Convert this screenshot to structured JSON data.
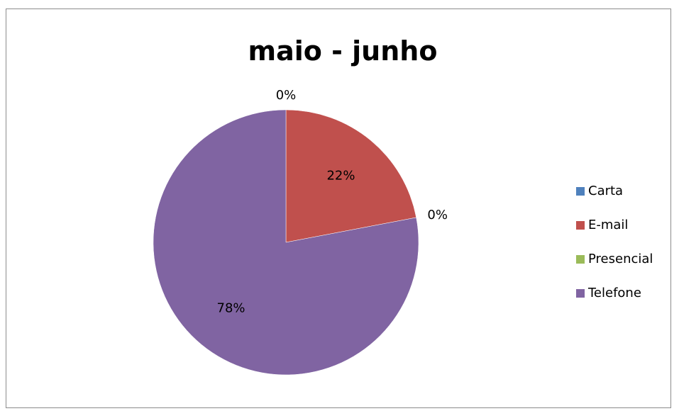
{
  "chart_data": {
    "type": "pie",
    "title": "maio - junho",
    "categories": [
      "Carta",
      "E-mail",
      "Presencial",
      "Telefone"
    ],
    "values": [
      0,
      22,
      0,
      78
    ],
    "labels": [
      "0%",
      "22%",
      "0%",
      "78%"
    ],
    "colors": [
      "#4F81BD",
      "#C0504D",
      "#9BBB59",
      "#8064A2"
    ],
    "legend_position": "right"
  }
}
